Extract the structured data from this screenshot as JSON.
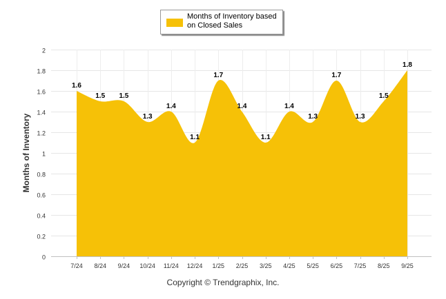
{
  "chart_data": {
    "type": "area",
    "title": "",
    "categories": [
      "7/24",
      "8/24",
      "9/24",
      "10/24",
      "11/24",
      "12/24",
      "1/25",
      "2/25",
      "3/25",
      "4/25",
      "5/25",
      "6/25",
      "7/25",
      "8/25",
      "9/25"
    ],
    "series": [
      {
        "name": "Months of Inventory based on Closed Sales",
        "values": [
          1.6,
          1.5,
          1.5,
          1.3,
          1.4,
          1.1,
          1.7,
          1.4,
          1.1,
          1.4,
          1.3,
          1.7,
          1.3,
          1.5,
          1.8
        ],
        "color": "#F6C107"
      }
    ],
    "data_labels": [
      "1.6",
      "1.5",
      "1.5",
      "1.3",
      "1.4",
      "1.1",
      "1.7",
      "1.4",
      "1.1",
      "1.4",
      "1.3",
      "1.7",
      "1.3",
      "1.5",
      "1.8"
    ],
    "xlabel": "",
    "ylabel": "Months of Inventory",
    "ylim": [
      0,
      2
    ],
    "yticks": [
      "0",
      "0.2",
      "0.4",
      "0.6",
      "0.8",
      "1",
      "1.2",
      "1.4",
      "1.6",
      "1.8",
      "2"
    ],
    "grid": true,
    "legend_position": "top-center"
  },
  "legend": {
    "line1": "Months of Inventory based",
    "line2": "on Closed Sales"
  },
  "footer": "Copyright © Trendgraphix, Inc."
}
